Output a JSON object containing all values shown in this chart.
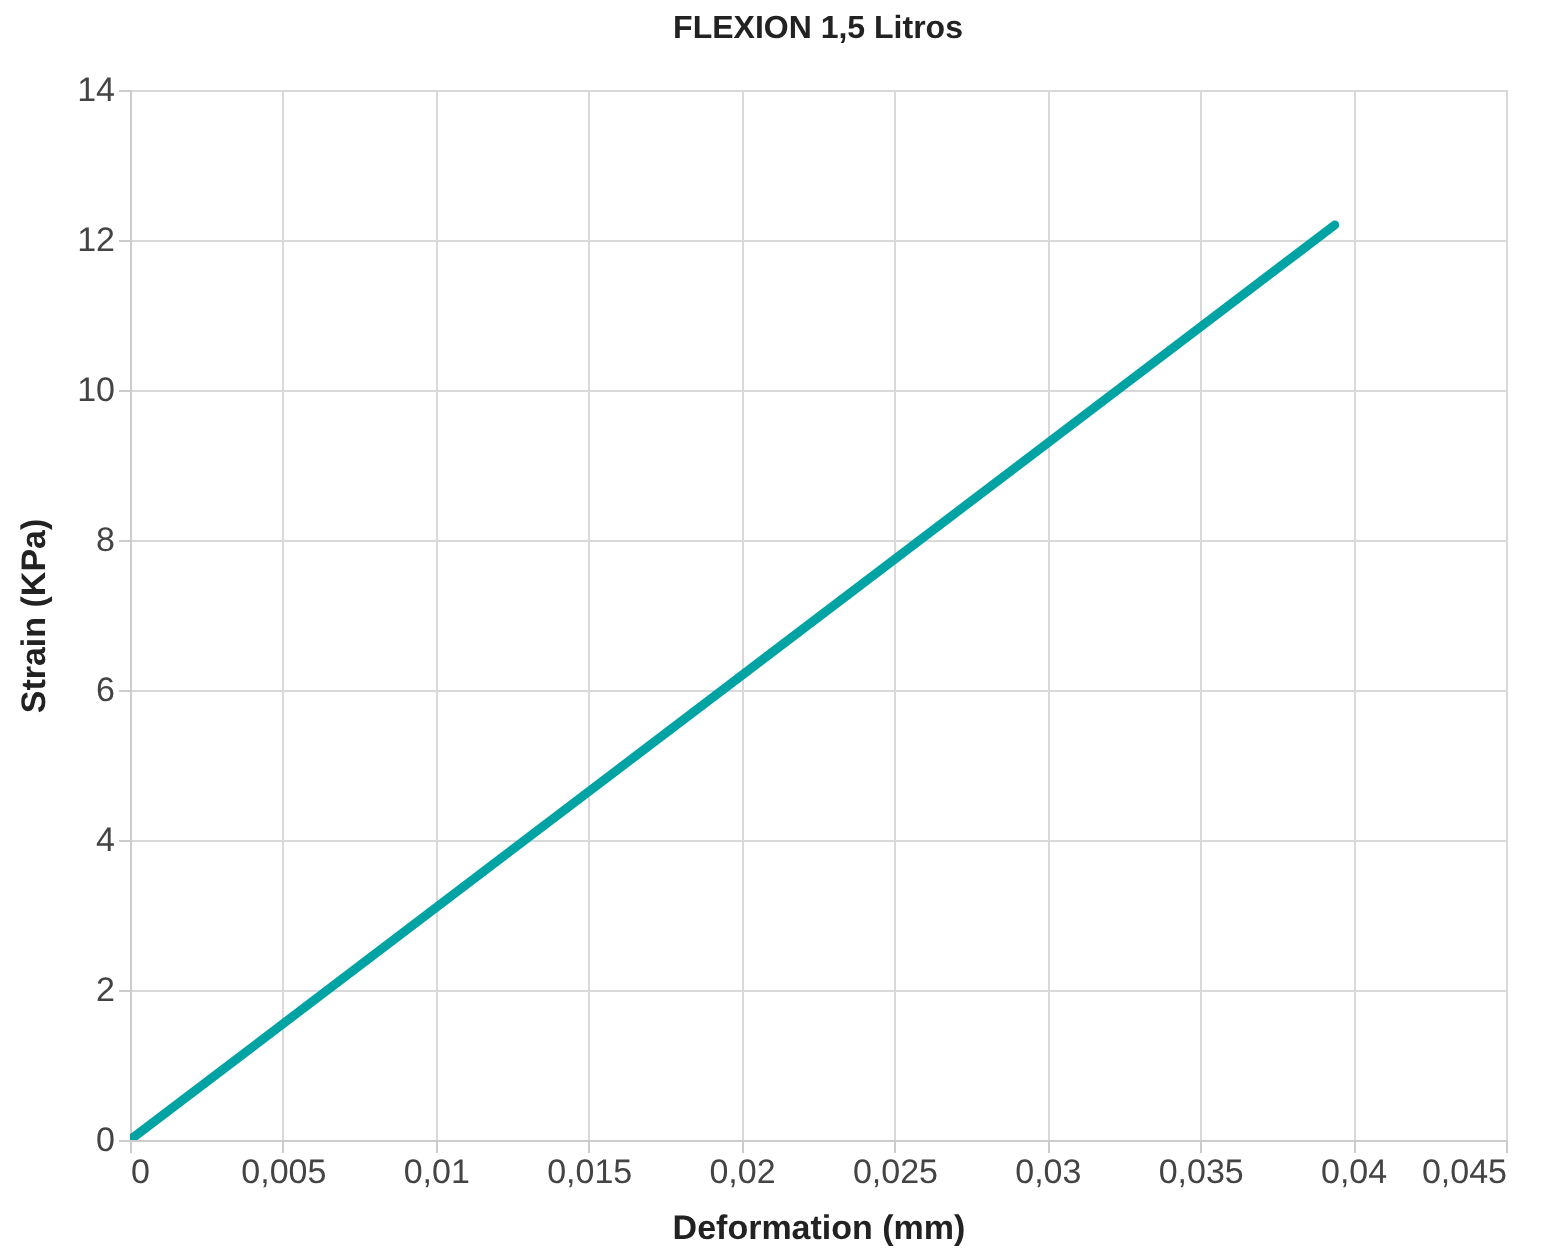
{
  "chart_data": {
    "type": "line",
    "title": "FLEXION 1,5 Litros",
    "xlabel": "Deformation (mm)",
    "ylabel": "Strain (KPa)",
    "x": [
      0,
      0.0394
    ],
    "series": [
      {
        "color": "#00a3a3",
        "values": [
          0,
          12.2
        ]
      }
    ],
    "xlim": [
      0,
      0.045
    ],
    "xticks": [
      0,
      {
        "value": 0.005,
        "label": "0,005"
      },
      {
        "value": 0.01,
        "label": "0,01"
      },
      {
        "value": 0.015,
        "label": "0,015"
      },
      {
        "value": 0.02,
        "label": "0,02"
      },
      {
        "value": 0.025,
        "label": "0,025"
      },
      {
        "value": 0.03,
        "label": "0,03"
      },
      {
        "value": 0.035,
        "label": "0,035"
      },
      {
        "value": 0.04,
        "label": "0,04"
      },
      {
        "value": 0.045,
        "label": "0,045"
      }
    ],
    "ylim": [
      0,
      14
    ],
    "yticks": [
      0,
      2,
      4,
      6,
      8,
      10,
      12,
      14
    ],
    "grid": true,
    "marker": "none",
    "line_style": "solid"
  }
}
